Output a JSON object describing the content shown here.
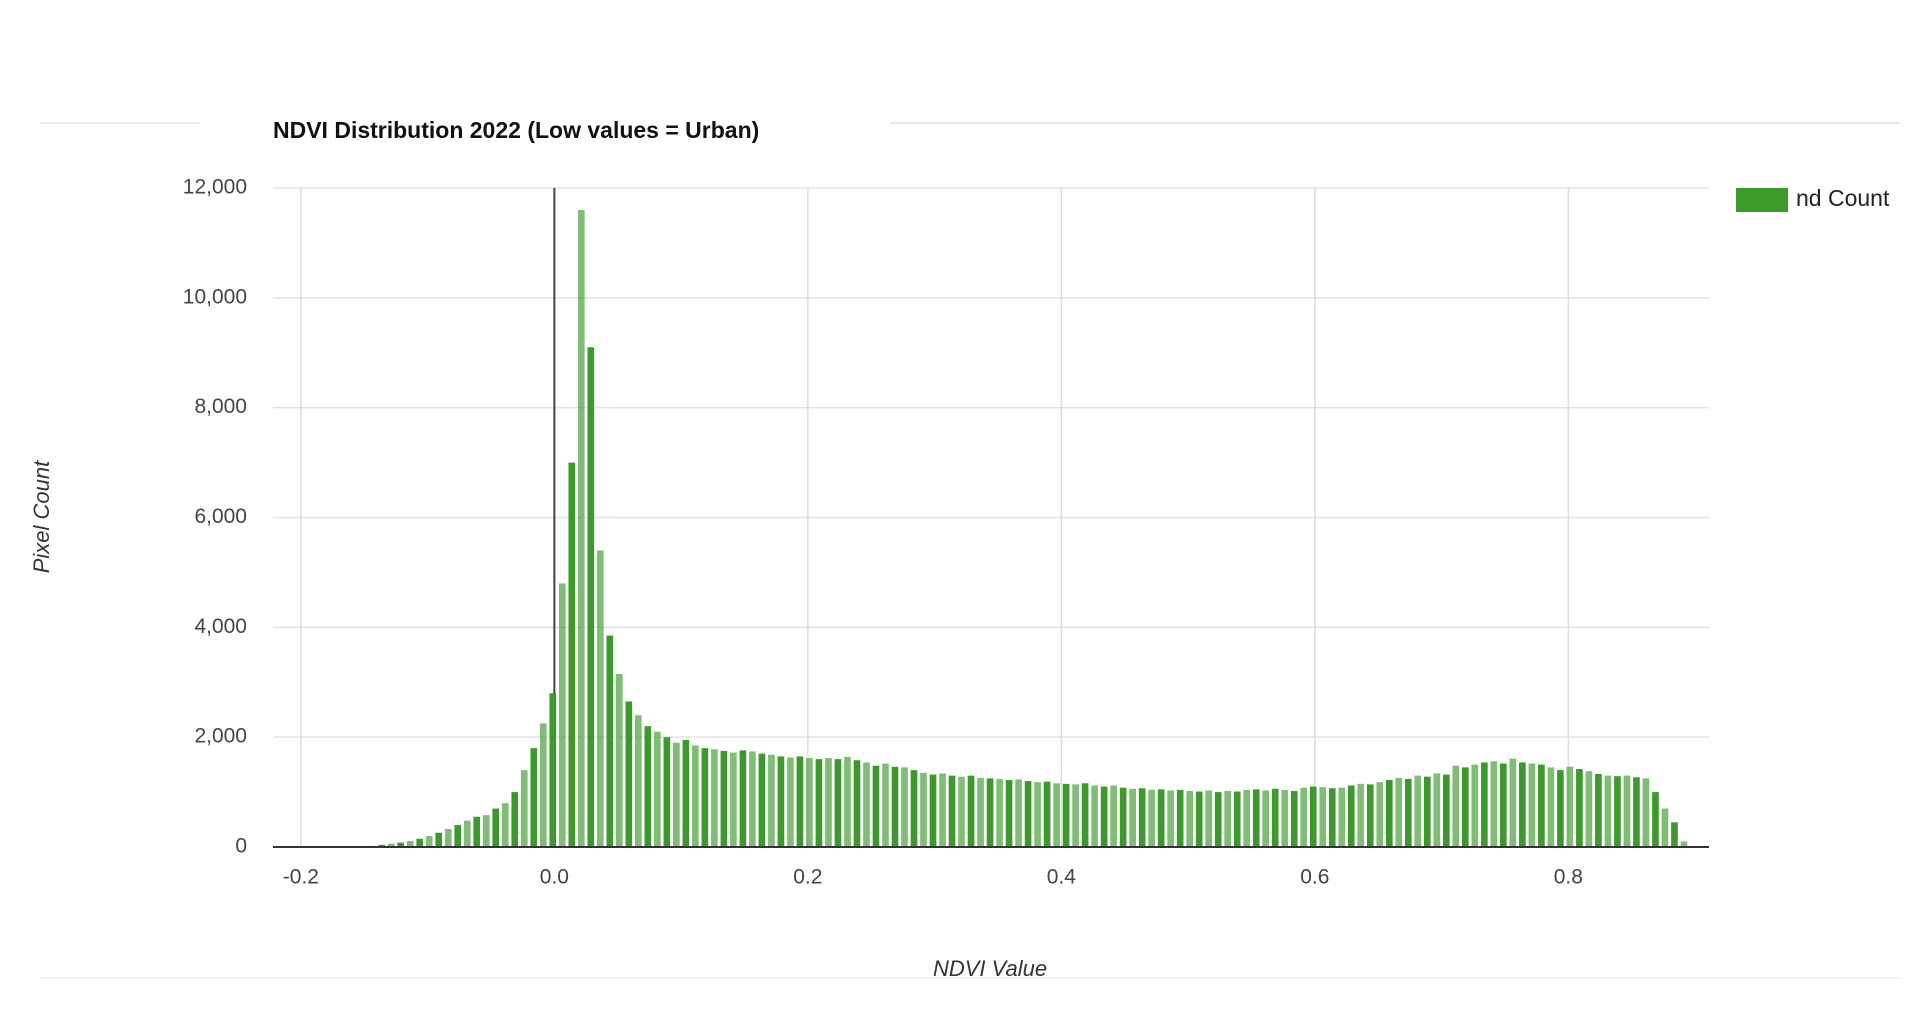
{
  "chart_data": {
    "type": "histogram",
    "title": "NDVI Distribution 2022 (Low values = Urban)",
    "x_label": "NDVI Value",
    "y_label": "Pixel Count",
    "series": [
      {
        "name": "nd Count",
        "color": "#3c9a2c",
        "values": [
          0,
          0,
          0,
          0,
          0,
          5,
          10,
          20,
          40,
          60,
          80,
          110,
          150,
          200,
          260,
          330,
          400,
          480,
          550,
          580,
          700,
          800,
          1000,
          1400,
          1800,
          2250,
          2800,
          4800,
          7000,
          11600,
          9100,
          5400,
          3850,
          3150,
          2650,
          2400,
          2200,
          2100,
          2000,
          1900,
          1950,
          1850,
          1800,
          1780,
          1750,
          1720,
          1760,
          1740,
          1700,
          1680,
          1650,
          1630,
          1650,
          1620,
          1600,
          1620,
          1600,
          1640,
          1580,
          1540,
          1480,
          1520,
          1460,
          1450,
          1400,
          1350,
          1320,
          1340,
          1300,
          1280,
          1300,
          1260,
          1250,
          1240,
          1220,
          1230,
          1200,
          1180,
          1190,
          1160,
          1150,
          1140,
          1160,
          1120,
          1100,
          1120,
          1080,
          1060,
          1070,
          1040,
          1050,
          1030,
          1040,
          1020,
          1010,
          1030,
          1000,
          1020,
          1010,
          1040,
          1050,
          1030,
          1060,
          1040,
          1020,
          1080,
          1100,
          1090,
          1070,
          1080,
          1120,
          1150,
          1140,
          1180,
          1220,
          1260,
          1240,
          1300,
          1280,
          1340,
          1320,
          1480,
          1450,
          1500,
          1540,
          1560,
          1520,
          1610,
          1540,
          1520,
          1500,
          1450,
          1400,
          1460,
          1420,
          1380,
          1330,
          1300,
          1290,
          1300,
          1270,
          1250,
          1000,
          700,
          450,
          100
        ]
      }
    ],
    "bins": [
      -0.2,
      -0.1925,
      -0.185,
      -0.1775,
      -0.17,
      -0.1625,
      -0.155,
      -0.1475,
      -0.14,
      -0.1325,
      -0.125,
      -0.1175,
      -0.11,
      -0.1025,
      -0.095,
      -0.0875,
      -0.08,
      -0.0725,
      -0.065,
      -0.0575,
      -0.05,
      -0.0425,
      -0.035,
      -0.0275,
      -0.02,
      -0.0125,
      -0.005,
      0.0025,
      0.01,
      0.0175,
      0.025,
      0.0325,
      0.04,
      0.0475,
      0.055,
      0.0625,
      0.07,
      0.0775,
      0.085,
      0.0925,
      0.1,
      0.1075,
      0.115,
      0.1225,
      0.13,
      0.1375,
      0.145,
      0.1525,
      0.16,
      0.1675,
      0.175,
      0.1825,
      0.19,
      0.1975,
      0.205,
      0.2125,
      0.22,
      0.2275,
      0.235,
      0.2425,
      0.25,
      0.2575,
      0.265,
      0.2725,
      0.28,
      0.2875,
      0.295,
      0.3025,
      0.31,
      0.3175,
      0.325,
      0.3325,
      0.34,
      0.3475,
      0.355,
      0.3625,
      0.37,
      0.3775,
      0.385,
      0.3925,
      0.4,
      0.4075,
      0.415,
      0.4225,
      0.43,
      0.4375,
      0.445,
      0.4525,
      0.46,
      0.4675,
      0.475,
      0.4825,
      0.49,
      0.4975,
      0.505,
      0.5125,
      0.52,
      0.5275,
      0.535,
      0.5425,
      0.55,
      0.5575,
      0.565,
      0.5725,
      0.58,
      0.5875,
      0.595,
      0.6025,
      0.61,
      0.6175,
      0.625,
      0.6325,
      0.64,
      0.6475,
      0.655,
      0.6625,
      0.67,
      0.6775,
      0.685,
      0.6925,
      0.7,
      0.7075,
      0.715,
      0.7225,
      0.73,
      0.7375,
      0.745,
      0.7525,
      0.76,
      0.7675,
      0.775,
      0.7825,
      0.79,
      0.7975,
      0.805,
      0.8125,
      0.82,
      0.8275,
      0.835,
      0.8425,
      0.85,
      0.8575,
      0.865,
      0.8725,
      0.88,
      0.8875,
      0.895
    ],
    "xlim": [
      -0.222,
      0.911
    ],
    "xticks": [
      -0.2,
      {
        "value": 0,
        "label": "0.0"
      },
      0.2,
      0.4,
      0.6,
      0.8
    ],
    "ylim": [
      0,
      12000
    ],
    "yticks": [
      0,
      {
        "value": 2000,
        "label": "2,000"
      },
      {
        "value": 4000,
        "label": "4,000"
      },
      {
        "value": 6000,
        "label": "6,000"
      },
      {
        "value": 8000,
        "label": "8,000"
      },
      {
        "value": 10000,
        "label": "10,000"
      },
      {
        "value": 12000,
        "label": "12,000"
      }
    ],
    "grid": true,
    "legend": "right"
  }
}
